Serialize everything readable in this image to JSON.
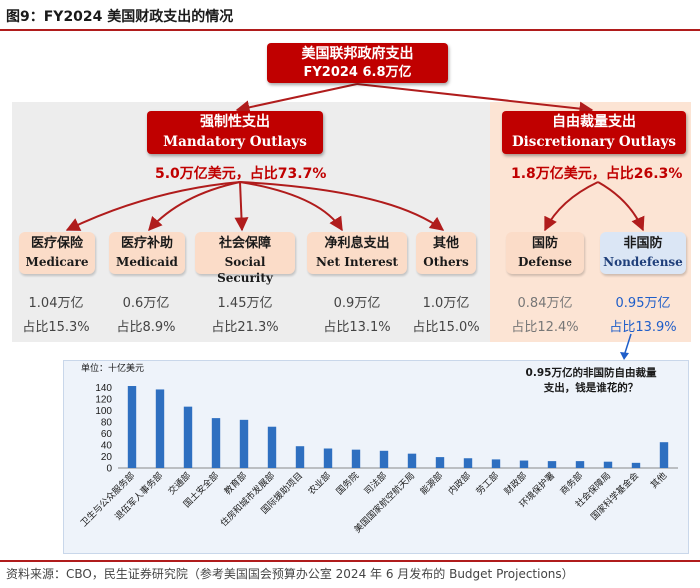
{
  "title": "图9：FY2024 美国财政支出的情况",
  "root": {
    "label": "美国联邦政府支出",
    "value": "FY2024  6.8万亿"
  },
  "mandatory": {
    "label_cn": "强制性支出",
    "label_en": "Mandatory Outlays",
    "summary": "5.0万亿美元，占比73.7%",
    "items": [
      {
        "cn": "医疗保险",
        "en": "Medicare",
        "amount": "1.04万亿",
        "share": "占比15.3%"
      },
      {
        "cn": "医疗补助",
        "en": "Medicaid",
        "amount": "0.6万亿",
        "share": "占比8.9%"
      },
      {
        "cn": "社会保障",
        "en": "Social Security",
        "amount": "1.45万亿",
        "share": "占比21.3%"
      },
      {
        "cn": "净利息支出",
        "en": "Net Interest",
        "amount": "0.9万亿",
        "share": "占比13.1%"
      },
      {
        "cn": "其他",
        "en": "Others",
        "amount": "1.0万亿",
        "share": "占比15.0%"
      }
    ]
  },
  "discretionary": {
    "label_cn": "自由裁量支出",
    "label_en": "Discretionary Outlays",
    "summary": "1.8万亿美元，占比26.3%",
    "items": [
      {
        "cn": "国防",
        "en": "Defense",
        "amount": "0.84万亿",
        "share": "占比12.4%"
      },
      {
        "cn": "非国防",
        "en": "Nondefense",
        "amount": "0.95万亿",
        "share": "占比13.9%"
      }
    ]
  },
  "callout": {
    "line1": "0.95万亿的非国防自由裁量",
    "line2": "支出，钱是谁花的？"
  },
  "chart_data": {
    "type": "bar",
    "ylabel": "单位：十亿美元",
    "ylim": [
      0,
      150
    ],
    "yticks": [
      0,
      20,
      40,
      60,
      80,
      100,
      120,
      140
    ],
    "categories": [
      "卫生与公众服务部",
      "退伍军人事务部",
      "交通部",
      "国土安全部",
      "教育部",
      "住房和城市发展部",
      "国际援助项目",
      "农业部",
      "国务院",
      "司法部",
      "美国国家航空航天局",
      "能源部",
      "内政部",
      "劳工部",
      "财政部",
      "环境保护署",
      "商务部",
      "社会保障局",
      "国家科学基金会",
      "其他"
    ],
    "values": [
      143,
      137,
      107,
      87,
      84,
      72,
      38,
      34,
      32,
      30,
      25,
      19,
      17,
      15,
      13,
      12,
      12,
      11,
      9,
      45
    ],
    "color": "#2e6fc0"
  },
  "source": "资料来源：CBO，民生证券研究院（参考美国国会预算办公室 2024 年 6 月发布的 Budget Projections）"
}
